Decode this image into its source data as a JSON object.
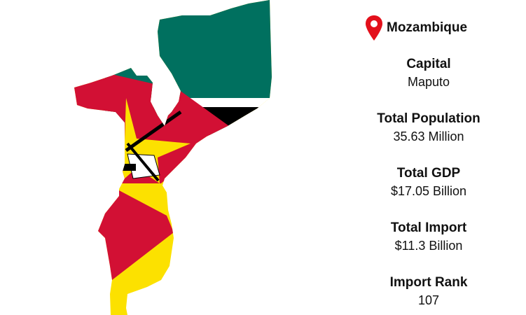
{
  "country": "Mozambique",
  "icon": "map-pin-icon",
  "colors": {
    "pin": "#e3101b",
    "teal": "#00705f",
    "red": "#d21034",
    "yellow": "#fce100",
    "black": "#000000"
  },
  "facts": [
    {
      "label": "Capital",
      "value": "Maputo"
    },
    {
      "label": "Total Population",
      "value": "35.63 Million"
    },
    {
      "label": "Total GDP",
      "value": "$17.05 Billion"
    },
    {
      "label": "Total Import",
      "value": "$11.3 Billion"
    },
    {
      "label": "Import Rank",
      "value": "107"
    }
  ]
}
